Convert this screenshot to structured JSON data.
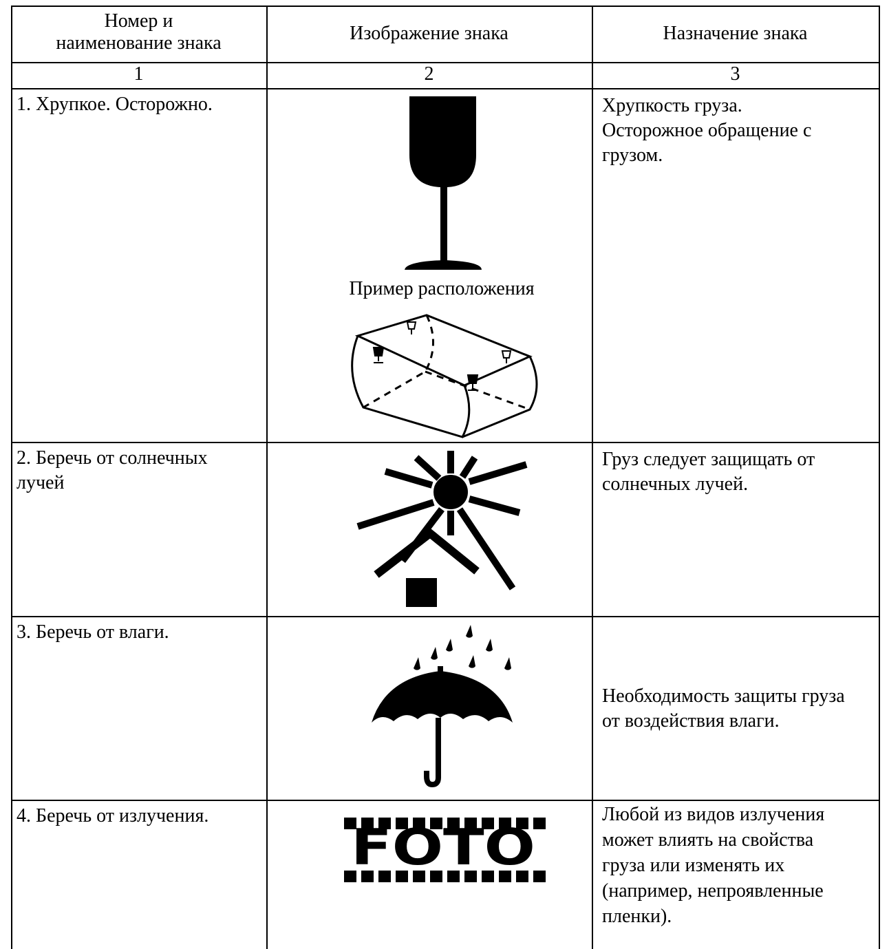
{
  "table": {
    "header": [
      [
        "Номер и",
        "наименование знака"
      ],
      [
        "Изображение знака"
      ],
      [
        "Назначение знака"
      ]
    ],
    "column_numbers": [
      "1",
      "2",
      "3"
    ],
    "rows": [
      {
        "name": [
          "1. Хрупкое. Осторожно."
        ],
        "caption": "Пример расположения",
        "purpose": [
          "Хрупкость груза.",
          "Осторожное обращение с",
          "грузом."
        ]
      },
      {
        "name": [
          "2. Беречь от солнечных",
          "лучей"
        ],
        "purpose": [
          "Груз следует защищать от",
          "солнечных лучей."
        ]
      },
      {
        "name": [
          "3. Беречь от влаги."
        ],
        "purpose": [
          "Необходимость защиты груза",
          "от воздействия влаги."
        ]
      },
      {
        "name": [
          "4. Беречь от излучения."
        ],
        "icon_text": "FOTO",
        "purpose": [
          "Любой из видов излучения",
          "может влиять на свойства",
          "груза или изменять их",
          "(например, непроявленные",
          "пленки)."
        ]
      }
    ]
  }
}
